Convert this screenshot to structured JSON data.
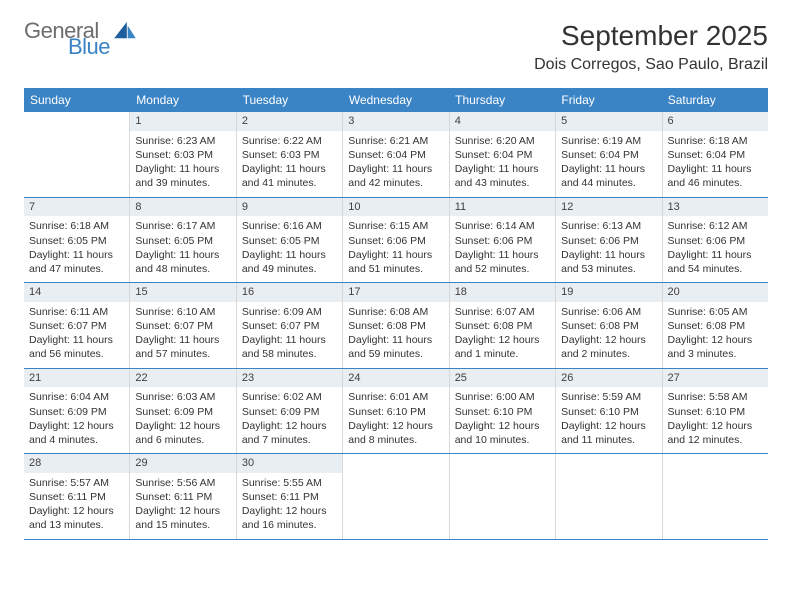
{
  "brand": {
    "word1": "General",
    "word2": "Blue",
    "icon_color": "#1f5e9e"
  },
  "title": {
    "month": "September 2025",
    "location": "Dois Corregos, Sao Paulo, Brazil"
  },
  "colors": {
    "header_bg": "#3a83c5",
    "divider": "#3a83c5",
    "daynum_bg": "#e9eef2"
  },
  "day_names": [
    "Sunday",
    "Monday",
    "Tuesday",
    "Wednesday",
    "Thursday",
    "Friday",
    "Saturday"
  ],
  "weeks": [
    [
      null,
      {
        "n": "1",
        "sr": "Sunrise: 6:23 AM",
        "ss": "Sunset: 6:03 PM",
        "d1": "Daylight: 11 hours",
        "d2": "and 39 minutes."
      },
      {
        "n": "2",
        "sr": "Sunrise: 6:22 AM",
        "ss": "Sunset: 6:03 PM",
        "d1": "Daylight: 11 hours",
        "d2": "and 41 minutes."
      },
      {
        "n": "3",
        "sr": "Sunrise: 6:21 AM",
        "ss": "Sunset: 6:04 PM",
        "d1": "Daylight: 11 hours",
        "d2": "and 42 minutes."
      },
      {
        "n": "4",
        "sr": "Sunrise: 6:20 AM",
        "ss": "Sunset: 6:04 PM",
        "d1": "Daylight: 11 hours",
        "d2": "and 43 minutes."
      },
      {
        "n": "5",
        "sr": "Sunrise: 6:19 AM",
        "ss": "Sunset: 6:04 PM",
        "d1": "Daylight: 11 hours",
        "d2": "and 44 minutes."
      },
      {
        "n": "6",
        "sr": "Sunrise: 6:18 AM",
        "ss": "Sunset: 6:04 PM",
        "d1": "Daylight: 11 hours",
        "d2": "and 46 minutes."
      }
    ],
    [
      {
        "n": "7",
        "sr": "Sunrise: 6:18 AM",
        "ss": "Sunset: 6:05 PM",
        "d1": "Daylight: 11 hours",
        "d2": "and 47 minutes."
      },
      {
        "n": "8",
        "sr": "Sunrise: 6:17 AM",
        "ss": "Sunset: 6:05 PM",
        "d1": "Daylight: 11 hours",
        "d2": "and 48 minutes."
      },
      {
        "n": "9",
        "sr": "Sunrise: 6:16 AM",
        "ss": "Sunset: 6:05 PM",
        "d1": "Daylight: 11 hours",
        "d2": "and 49 minutes."
      },
      {
        "n": "10",
        "sr": "Sunrise: 6:15 AM",
        "ss": "Sunset: 6:06 PM",
        "d1": "Daylight: 11 hours",
        "d2": "and 51 minutes."
      },
      {
        "n": "11",
        "sr": "Sunrise: 6:14 AM",
        "ss": "Sunset: 6:06 PM",
        "d1": "Daylight: 11 hours",
        "d2": "and 52 minutes."
      },
      {
        "n": "12",
        "sr": "Sunrise: 6:13 AM",
        "ss": "Sunset: 6:06 PM",
        "d1": "Daylight: 11 hours",
        "d2": "and 53 minutes."
      },
      {
        "n": "13",
        "sr": "Sunrise: 6:12 AM",
        "ss": "Sunset: 6:06 PM",
        "d1": "Daylight: 11 hours",
        "d2": "and 54 minutes."
      }
    ],
    [
      {
        "n": "14",
        "sr": "Sunrise: 6:11 AM",
        "ss": "Sunset: 6:07 PM",
        "d1": "Daylight: 11 hours",
        "d2": "and 56 minutes."
      },
      {
        "n": "15",
        "sr": "Sunrise: 6:10 AM",
        "ss": "Sunset: 6:07 PM",
        "d1": "Daylight: 11 hours",
        "d2": "and 57 minutes."
      },
      {
        "n": "16",
        "sr": "Sunrise: 6:09 AM",
        "ss": "Sunset: 6:07 PM",
        "d1": "Daylight: 11 hours",
        "d2": "and 58 minutes."
      },
      {
        "n": "17",
        "sr": "Sunrise: 6:08 AM",
        "ss": "Sunset: 6:08 PM",
        "d1": "Daylight: 11 hours",
        "d2": "and 59 minutes."
      },
      {
        "n": "18",
        "sr": "Sunrise: 6:07 AM",
        "ss": "Sunset: 6:08 PM",
        "d1": "Daylight: 12 hours",
        "d2": "and 1 minute."
      },
      {
        "n": "19",
        "sr": "Sunrise: 6:06 AM",
        "ss": "Sunset: 6:08 PM",
        "d1": "Daylight: 12 hours",
        "d2": "and 2 minutes."
      },
      {
        "n": "20",
        "sr": "Sunrise: 6:05 AM",
        "ss": "Sunset: 6:08 PM",
        "d1": "Daylight: 12 hours",
        "d2": "and 3 minutes."
      }
    ],
    [
      {
        "n": "21",
        "sr": "Sunrise: 6:04 AM",
        "ss": "Sunset: 6:09 PM",
        "d1": "Daylight: 12 hours",
        "d2": "and 4 minutes."
      },
      {
        "n": "22",
        "sr": "Sunrise: 6:03 AM",
        "ss": "Sunset: 6:09 PM",
        "d1": "Daylight: 12 hours",
        "d2": "and 6 minutes."
      },
      {
        "n": "23",
        "sr": "Sunrise: 6:02 AM",
        "ss": "Sunset: 6:09 PM",
        "d1": "Daylight: 12 hours",
        "d2": "and 7 minutes."
      },
      {
        "n": "24",
        "sr": "Sunrise: 6:01 AM",
        "ss": "Sunset: 6:10 PM",
        "d1": "Daylight: 12 hours",
        "d2": "and 8 minutes."
      },
      {
        "n": "25",
        "sr": "Sunrise: 6:00 AM",
        "ss": "Sunset: 6:10 PM",
        "d1": "Daylight: 12 hours",
        "d2": "and 10 minutes."
      },
      {
        "n": "26",
        "sr": "Sunrise: 5:59 AM",
        "ss": "Sunset: 6:10 PM",
        "d1": "Daylight: 12 hours",
        "d2": "and 11 minutes."
      },
      {
        "n": "27",
        "sr": "Sunrise: 5:58 AM",
        "ss": "Sunset: 6:10 PM",
        "d1": "Daylight: 12 hours",
        "d2": "and 12 minutes."
      }
    ],
    [
      {
        "n": "28",
        "sr": "Sunrise: 5:57 AM",
        "ss": "Sunset: 6:11 PM",
        "d1": "Daylight: 12 hours",
        "d2": "and 13 minutes."
      },
      {
        "n": "29",
        "sr": "Sunrise: 5:56 AM",
        "ss": "Sunset: 6:11 PM",
        "d1": "Daylight: 12 hours",
        "d2": "and 15 minutes."
      },
      {
        "n": "30",
        "sr": "Sunrise: 5:55 AM",
        "ss": "Sunset: 6:11 PM",
        "d1": "Daylight: 12 hours",
        "d2": "and 16 minutes."
      },
      null,
      null,
      null,
      null
    ]
  ]
}
